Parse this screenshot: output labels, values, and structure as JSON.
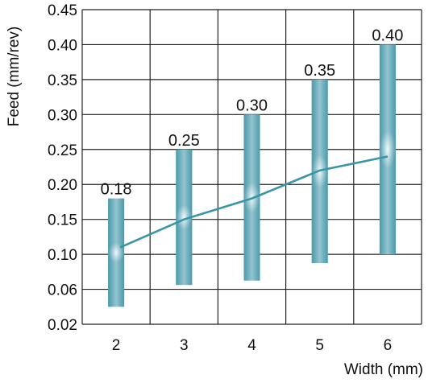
{
  "chart_data": {
    "type": "bar",
    "title": "",
    "xlabel": "Width (mm)",
    "ylabel": "Feed (mm/rev)",
    "categories": [
      "2",
      "3",
      "4",
      "5",
      "6"
    ],
    "y_ticks": [
      "0.02",
      "0.06",
      "0.10",
      "0.15",
      "0.20",
      "0.25",
      "0.30",
      "0.35",
      "0.40",
      "0.45"
    ],
    "ylim": [
      0.02,
      0.45
    ],
    "grid": true,
    "series": [
      {
        "kind": "range",
        "low": [
          0.04,
          0.065,
          0.07,
          0.09,
          0.1
        ],
        "high": [
          0.18,
          0.25,
          0.3,
          0.35,
          0.4
        ],
        "labels": [
          "0.18",
          "0.25",
          "0.30",
          "0.35",
          "0.40"
        ]
      },
      {
        "kind": "line",
        "values": [
          0.11,
          0.15,
          0.18,
          0.22,
          0.24
        ]
      }
    ],
    "colors": {
      "bar_edge": "#4a9aab",
      "bar_center": "#f2fafb",
      "line": "#3a95a6",
      "grid": "#222222"
    }
  }
}
